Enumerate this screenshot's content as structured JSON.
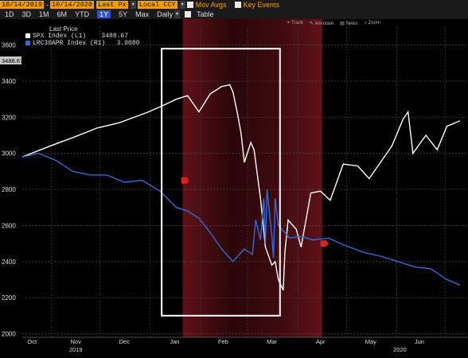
{
  "toolbar": {
    "start_date": "10/14/2019",
    "end_date": "10/14/2020",
    "price_field": "Last Px",
    "currency": "Local CCY",
    "mov_avgs": "Mov Avgs",
    "key_events": "Key Events",
    "periods": [
      "1D",
      "3D",
      "1M",
      "6M",
      "YTD",
      "1Y",
      "5Y",
      "Max"
    ],
    "active_period": "1Y",
    "frequency": "Daily",
    "table": "Table",
    "dropdown_glyph": "▾",
    "separator": "-"
  },
  "chart_tools": {
    "track": "Track",
    "annotate": "Annotate",
    "news": "News",
    "zoom": "Zoom"
  },
  "colors": {
    "spx": "#ffffff",
    "lrc": "#2e6bdc",
    "shade": "#5e1218",
    "box": "#ffffff",
    "marker": "#e02020",
    "accent": "#f0a000"
  },
  "chart_data": {
    "type": "line",
    "legend_title": "Last Price",
    "current_label": "3488.67",
    "y_ticks": [
      "3600",
      "3400",
      "3200",
      "3000",
      "2800",
      "2600",
      "2400",
      "2200",
      "2000"
    ],
    "ylim": [
      1980,
      3700
    ],
    "x_month_labels": [
      "Oct",
      "Nov",
      "Dec",
      "Jan",
      "Feb",
      "Mar",
      "Apr",
      "May",
      "Jun"
    ],
    "x_year_labels": [
      "2019",
      "2020"
    ],
    "series": [
      {
        "name": "SPX Index  (L1)",
        "last": "3488.67",
        "x": [
          "2019-10-14",
          "2019-10-31",
          "2019-11-15",
          "2019-11-29",
          "2019-12-13",
          "2019-12-31",
          "2020-01-10",
          "2020-01-17",
          "2020-01-24",
          "2020-01-31",
          "2020-02-07",
          "2020-02-14",
          "2020-02-19",
          "2020-02-21",
          "2020-02-24",
          "2020-02-26",
          "2020-02-28",
          "2020-03-03",
          "2020-03-05",
          "2020-03-09",
          "2020-03-12",
          "2020-03-16",
          "2020-03-18",
          "2020-03-20",
          "2020-03-23",
          "2020-03-24",
          "2020-03-26",
          "2020-03-31",
          "2020-04-03",
          "2020-04-09",
          "2020-04-15",
          "2020-04-21",
          "2020-04-29",
          "2020-05-08",
          "2020-05-15",
          "2020-05-22",
          "2020-05-29",
          "2020-06-05",
          "2020-06-08",
          "2020-06-11",
          "2020-06-19",
          "2020-06-26",
          "2020-07-02",
          "2020-07-10"
        ],
        "values": [
          2980,
          3040,
          3090,
          3140,
          3170,
          3230,
          3270,
          3300,
          3320,
          3230,
          3330,
          3370,
          3380,
          3340,
          3210,
          3110,
          2950,
          3060,
          3020,
          2750,
          2480,
          2380,
          2400,
          2300,
          2240,
          2450,
          2630,
          2580,
          2480,
          2780,
          2790,
          2740,
          2940,
          2930,
          2860,
          2950,
          3040,
          3190,
          3230,
          3000,
          3100,
          3020,
          3150,
          3180
        ]
      },
      {
        "name": "LRC30APR Index  (R1)",
        "last": "3.0080",
        "x": [
          "2019-10-14",
          "2019-10-24",
          "2019-11-04",
          "2019-11-14",
          "2019-11-25",
          "2019-12-05",
          "2019-12-16",
          "2019-12-27",
          "2020-01-07",
          "2020-01-17",
          "2020-01-24",
          "2020-01-31",
          "2020-02-07",
          "2020-02-14",
          "2020-02-21",
          "2020-02-28",
          "2020-03-04",
          "2020-03-06",
          "2020-03-09",
          "2020-03-11",
          "2020-03-12",
          "2020-03-13",
          "2020-03-16",
          "2020-03-17",
          "2020-03-18",
          "2020-03-20",
          "2020-03-24",
          "2020-03-27",
          "2020-04-03",
          "2020-04-10",
          "2020-04-20",
          "2020-04-30",
          "2020-05-12",
          "2020-05-22",
          "2020-06-02",
          "2020-06-12",
          "2020-06-22",
          "2020-07-02",
          "2020-07-10"
        ],
        "values": [
          2980,
          3000,
          2960,
          2900,
          2880,
          2880,
          2840,
          2850,
          2790,
          2700,
          2680,
          2640,
          2560,
          2470,
          2400,
          2470,
          2440,
          2630,
          2520,
          2750,
          2500,
          2800,
          2540,
          2420,
          2750,
          2600,
          2560,
          2530,
          2540,
          2520,
          2530,
          2490,
          2450,
          2430,
          2400,
          2370,
          2360,
          2300,
          2270
        ]
      }
    ],
    "annotations": {
      "shaded_range": [
        "2020-01-21",
        "2020-04-16"
      ],
      "boxed_range": [
        "2020-01-08",
        "2020-03-21"
      ],
      "box_y_range": [
        2100,
        3580
      ],
      "markers": [
        {
          "x": "2020-01-22",
          "y": 2850
        },
        {
          "x": "2020-04-17",
          "y": 2500
        }
      ]
    }
  }
}
